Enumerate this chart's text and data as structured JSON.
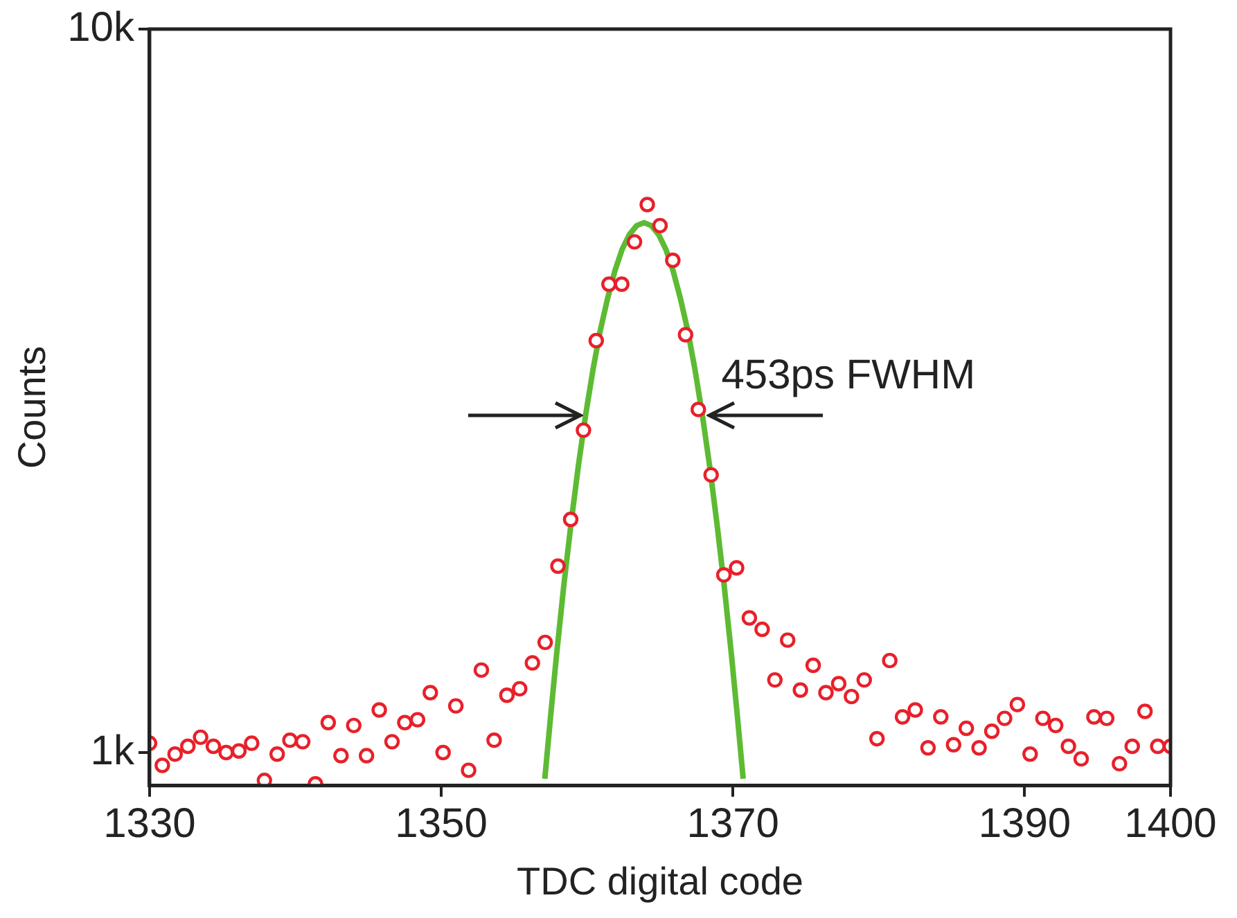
{
  "chart_data": {
    "type": "scatter",
    "xlabel": "TDC digital code",
    "ylabel": "Counts",
    "xlim": [
      1330,
      1400
    ],
    "xticks": [
      1330,
      1350,
      1370,
      1390,
      1400
    ],
    "ylim": [
      900,
      10000
    ],
    "yticks": [
      {
        "value": 1000,
        "label": "1k"
      },
      {
        "value": 10000,
        "label": "10k"
      }
    ],
    "log": "y",
    "grid": false,
    "legend": false,
    "annotations": [
      "453ps FWHM"
    ],
    "series": [
      {
        "color": "#e8202a",
        "marker": "circle",
        "x": [
          1330,
          1330.875,
          1331.75,
          1332.625,
          1333.5,
          1334.375,
          1335.25,
          1336.125,
          1337,
          1337.875,
          1338.75,
          1339.625,
          1340.5,
          1341.375,
          1342.25,
          1343.125,
          1344,
          1344.875,
          1345.75,
          1346.625,
          1347.5,
          1348.375,
          1349.25,
          1350.125,
          1351,
          1351.875,
          1352.75,
          1353.625,
          1354.5,
          1355.375,
          1356.25,
          1357.125,
          1358,
          1358.875,
          1359.75,
          1360.625,
          1361.5,
          1362.375,
          1363.25,
          1364.125,
          1365,
          1365.875,
          1366.75,
          1367.625,
          1368.5,
          1369.375,
          1370.25,
          1371.125,
          1372,
          1372.875,
          1373.75,
          1374.625,
          1375.5,
          1376.375,
          1377.25,
          1378.125,
          1379,
          1379.875,
          1380.75,
          1381.625,
          1382.5,
          1383.375,
          1384.25,
          1385.125,
          1386,
          1386.875,
          1387.75,
          1388.625,
          1389.5,
          1390.375,
          1391.25,
          1392.125,
          1393,
          1393.875,
          1394.75,
          1395.625,
          1396.5,
          1397.375,
          1398.25,
          1399.125,
          1400
        ],
        "values": [
          1030,
          960,
          995,
          1020,
          1050,
          1020,
          1000,
          1005,
          1030,
          915,
          995,
          1040,
          1035,
          905,
          1100,
          990,
          1090,
          990,
          1145,
          1035,
          1100,
          1110,
          1210,
          1000,
          1160,
          945,
          1300,
          1040,
          1200,
          1225,
          1330,
          1420,
          1810,
          2100,
          2790,
          3710,
          4440,
          4440,
          5080,
          5720,
          5350,
          4790,
          3780,
          2980,
          2420,
          1760,
          1800,
          1535,
          1480,
          1260,
          1430,
          1220,
          1320,
          1210,
          1245,
          1195,
          1260,
          1045,
          1340,
          1120,
          1145,
          1015,
          1120,
          1025,
          1080,
          1015,
          1070,
          1115,
          1165,
          995,
          1115,
          1090,
          1020,
          980,
          1120,
          1115,
          965,
          1020,
          1140,
          1020,
          1020
        ]
      },
      {
        "type": "line",
        "color": "#5dbb33",
        "marker": "none",
        "line_style": "solid",
        "x": [
          1357.1,
          1357.5,
          1357.9,
          1358.4,
          1358.9,
          1359.4,
          1359.9,
          1360.4,
          1360.9,
          1361.4,
          1361.9,
          1362.4,
          1362.9,
          1363.4,
          1363.9,
          1364.4,
          1364.9,
          1365.4,
          1365.9,
          1366.4,
          1366.9,
          1367.4,
          1367.9,
          1368.4,
          1368.9,
          1369.4,
          1369.9,
          1370.3,
          1370.7
        ],
        "values": [
          920,
          1124,
          1362,
          1700,
          2075,
          2490,
          2930,
          3380,
          3830,
          4240,
          4630,
          4960,
          5200,
          5350,
          5400,
          5350,
          5200,
          4960,
          4630,
          4240,
          3830,
          3380,
          2930,
          2490,
          2075,
          1700,
          1362,
          1124,
          920
        ]
      }
    ]
  }
}
